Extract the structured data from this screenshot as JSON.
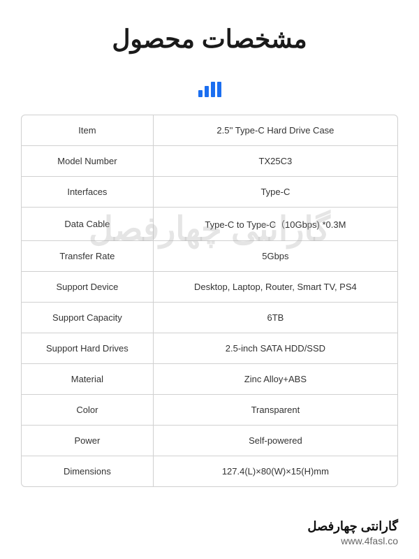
{
  "header": {
    "title": "مشخصات محصول"
  },
  "icon": {
    "name": "signal-bars",
    "color": "#1b6ef0",
    "bars": [
      10,
      16,
      22,
      22
    ]
  },
  "table": {
    "border_color": "#d0d0d0",
    "text_color": "#333333",
    "fontsize": 13,
    "rows": [
      {
        "label": "Item",
        "value": "2.5'' Type-C Hard Drive Case"
      },
      {
        "label": "Model Number",
        "value": "TX25C3"
      },
      {
        "label": "Interfaces",
        "value": "Type-C"
      },
      {
        "label": "Data Cable",
        "value": "Type-C to Type-C（10Gbps) *0.3M"
      },
      {
        "label": "Transfer Rate",
        "value": "5Gbps"
      },
      {
        "label": "Support Device",
        "value": "Desktop, Laptop, Router, Smart TV, PS4"
      },
      {
        "label": "Support Capacity",
        "value": "6TB"
      },
      {
        "label": "Support Hard Drives",
        "value": "2.5-inch SATA HDD/SSD"
      },
      {
        "label": "Material",
        "value": "Zinc Alloy+ABS"
      },
      {
        "label": "Color",
        "value": "Transparent"
      },
      {
        "label": "Power",
        "value": "Self-powered"
      },
      {
        "label": "Dimensions",
        "value": "127.4(L)×80(W)×15(H)mm"
      }
    ]
  },
  "watermark": {
    "text": "گارانتی چهارفصل",
    "color": "rgba(180,180,180,0.35)"
  },
  "footer": {
    "title": "گارانتی چهارفصل",
    "url": "www.4fasl.co"
  },
  "colors": {
    "background": "#ffffff",
    "title_color": "#1a1a1a",
    "accent": "#1b6ef0"
  }
}
